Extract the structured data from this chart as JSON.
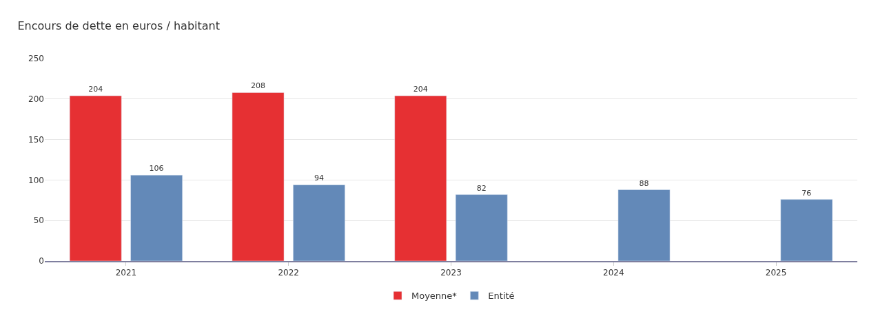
{
  "chart_data": {
    "type": "bar",
    "title": "Encours de dette en euros / habitant",
    "categories": [
      "2021",
      "2022",
      "2023",
      "2024",
      "2025"
    ],
    "series": [
      {
        "name": "Moyenne*",
        "color": "#e63033",
        "values": [
          204,
          208,
          204,
          null,
          null
        ]
      },
      {
        "name": "Entité",
        "color": "#6389b8",
        "values": [
          106,
          94,
          82,
          88,
          76
        ]
      }
    ],
    "ylim": [
      0,
      250
    ],
    "yticks": [
      0,
      50,
      100,
      150,
      200,
      250
    ],
    "grid": "y",
    "legend": "bottom",
    "data_labels": true
  }
}
